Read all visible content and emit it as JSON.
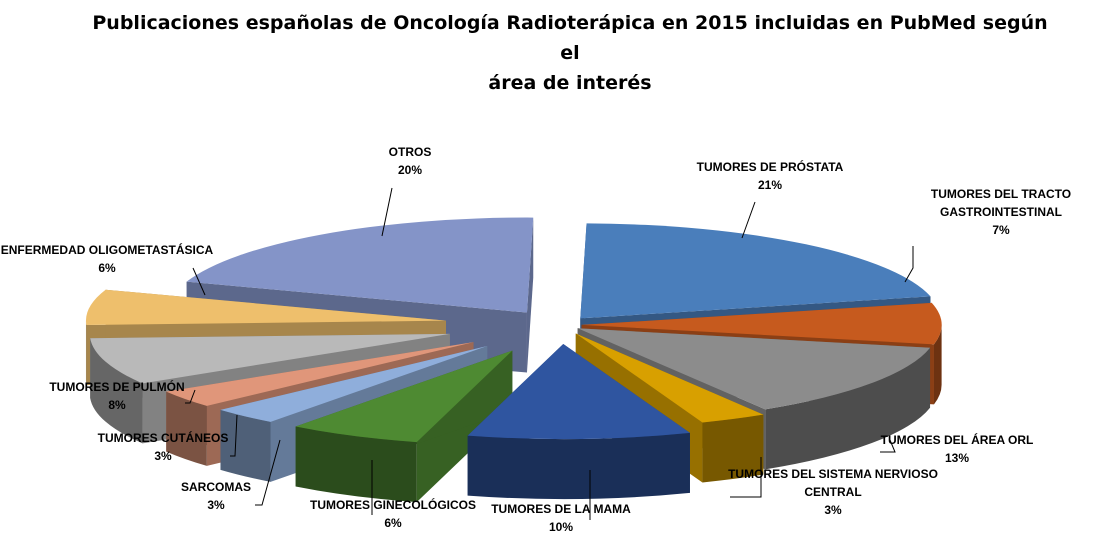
{
  "chart_data": {
    "type": "pie",
    "variant": "3d-exploded",
    "title_lines": [
      "Publicaciones españolas de Oncología Radioterápica en 2015 incluidas en PubMed según el",
      "área de interés"
    ],
    "legend": "none",
    "slices": [
      {
        "name": "TUMORES DE PRÓSTATA",
        "name_lines": [
          "TUMORES DE PRÓSTATA"
        ],
        "value": 21,
        "label": "21%",
        "color": "#4a7ebb"
      },
      {
        "name": "TUMORES DEL TRACTO GASTROINTESTINAL",
        "name_lines": [
          "TUMORES DEL TRACTO",
          "GASTROINTESTINAL"
        ],
        "value": 7,
        "label": "7%",
        "color": "#c65a1e"
      },
      {
        "name": "TUMORES DEL ÁREA ORL",
        "name_lines": [
          "TUMORES DEL ÁREA ORL"
        ],
        "value": 13,
        "label": "13%",
        "color": "#8c8c8c"
      },
      {
        "name": "TUMORES DEL SISTEMA NERVIOSO CENTRAL",
        "name_lines": [
          "TUMORES DEL SISTEMA NERVIOSO",
          "CENTRAL"
        ],
        "value": 3,
        "label": "3%",
        "color": "#d8a000"
      },
      {
        "name": "TUMORES DE LA MAMA",
        "name_lines": [
          "TUMORES DE LA MAMA"
        ],
        "value": 10,
        "label": "10%",
        "color": "#2f55a0"
      },
      {
        "name": "TUMORES GINECOLÓGICOS",
        "name_lines": [
          "TUMORES GINECOLÓGICOS"
        ],
        "value": 6,
        "label": "6%",
        "color": "#4e8a32"
      },
      {
        "name": "SARCOMAS",
        "name_lines": [
          "SARCOMAS"
        ],
        "value": 3,
        "label": "3%",
        "color": "#8faedb"
      },
      {
        "name": "TUMORES CUTÁNEOS",
        "name_lines": [
          "TUMORES CUTÁNEOS"
        ],
        "value": 3,
        "label": "3%",
        "color": "#e0967a"
      },
      {
        "name": "TUMORES DE PULMÓN",
        "name_lines": [
          "TUMORES DE PULMÓN"
        ],
        "value": 8,
        "label": "8%",
        "color": "#b9b9b9"
      },
      {
        "name": "ENFERMEDAD OLIGOMETASTÁSICA",
        "name_lines": [
          "ENFERMEDAD OLIGOMETASTÁSICA"
        ],
        "value": 6,
        "label": "6%",
        "color": "#eebf6c"
      },
      {
        "name": "OTROS",
        "name_lines": [
          "OTROS"
        ],
        "value": 20,
        "label": "20%",
        "color": "#8494c8"
      }
    ]
  }
}
